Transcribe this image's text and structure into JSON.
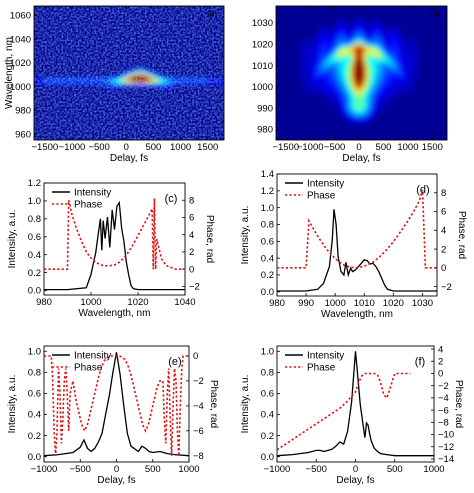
{
  "colors": {
    "intensity": "#000000",
    "phase": "#dd1111",
    "axis": "#000000"
  },
  "chart_data": [
    {
      "id": "a",
      "type": "heatmap",
      "panel_label": "(a)",
      "xlabel": "Delay, fs",
      "ylabel": "Wavelength, nm",
      "xlim": [
        -1700,
        1800
      ],
      "ylim": [
        955,
        1068
      ],
      "xticks": [
        -1500,
        -1000,
        -500,
        0,
        500,
        1000,
        1500
      ],
      "yticks": [
        960,
        980,
        1000,
        1020,
        1040,
        1060
      ],
      "colormap": "jet",
      "features": {
        "peak_delay_fs": 250,
        "peak_wavelength_nm": 1006,
        "band_wavelength_nm": 1005
      }
    },
    {
      "id": "b",
      "type": "heatmap",
      "panel_label": "(b)",
      "xlabel": "Delay, fs",
      "ylabel": "",
      "xlim": [
        -1700,
        1800
      ],
      "ylim": [
        975,
        1038
      ],
      "xticks": [
        -1500,
        -1000,
        -500,
        0,
        500,
        1000,
        1500
      ],
      "yticks": [
        980,
        990,
        1000,
        1010,
        1020,
        1030
      ],
      "colormap": "jet",
      "features": {
        "peak_delay_fs": 0,
        "peak_wavelength_nm": 1008
      }
    },
    {
      "id": "c",
      "type": "line",
      "panel_label": "(c)",
      "xlabel": "Wavelength, nm",
      "ylabel": "Intensity, a.u.",
      "y2label": "Phase, rad",
      "xlim": [
        980,
        1040
      ],
      "ylim": [
        -0.05,
        1.2
      ],
      "y2lim": [
        -3,
        10
      ],
      "xticks": [
        980,
        1000,
        1020,
        1040
      ],
      "yticks": [
        0.0,
        0.2,
        0.4,
        0.6,
        0.8,
        1.0,
        1.2
      ],
      "y2ticks": [
        -2,
        0,
        2,
        4,
        6,
        8
      ],
      "legend": [
        "Intensity",
        "Phase"
      ],
      "legend_position": "top-left",
      "series": [
        {
          "name": "Intensity",
          "axis": "left",
          "style": "solid",
          "x": [
            980,
            990,
            998,
            1000,
            1001,
            1002,
            1003,
            1004,
            1004.6,
            1005.2,
            1006,
            1007,
            1008,
            1009,
            1010,
            1011,
            1012,
            1012.5,
            1013,
            1014,
            1015,
            1016,
            1017,
            1018,
            1020,
            1025,
            1040
          ],
          "y": [
            0.01,
            0.01,
            0.03,
            0.18,
            0.3,
            0.42,
            0.62,
            0.8,
            0.45,
            0.78,
            0.58,
            0.82,
            0.48,
            0.9,
            0.68,
            0.94,
            0.98,
            0.85,
            0.7,
            0.55,
            0.32,
            0.18,
            0.06,
            0.02,
            0.01,
            0.01,
            0.01
          ]
        },
        {
          "name": "Phase",
          "axis": "right",
          "style": "dotted",
          "x": [
            980,
            990,
            990.5,
            991,
            992,
            994,
            996,
            998,
            1000,
            1002,
            1004,
            1006,
            1008,
            1010,
            1012,
            1014,
            1016,
            1018,
            1020,
            1022,
            1024,
            1026,
            1026.5,
            1027,
            1027.5,
            1028,
            1030,
            1032,
            1034,
            1036,
            1040
          ],
          "y": [
            0,
            0,
            8,
            7.5,
            6.2,
            4.6,
            3.2,
            2.0,
            1.3,
            0.8,
            0.5,
            0.4,
            0.4,
            0.5,
            0.8,
            1.3,
            2.0,
            2.9,
            3.9,
            4.9,
            5.9,
            7.0,
            0,
            8.2,
            0,
            3.5,
            1.2,
            0.4,
            0.2,
            0,
            0
          ]
        }
      ]
    },
    {
      "id": "d",
      "type": "line",
      "panel_label": "(d)",
      "xlabel": "Wavelength, nm",
      "ylabel": "Intensity, a.u.",
      "y2label": "Phase, rad",
      "xlim": [
        980,
        1035
      ],
      "ylim": [
        -0.05,
        1.4
      ],
      "y2lim": [
        -3,
        10
      ],
      "xticks": [
        980,
        990,
        1000,
        1010,
        1020,
        1030
      ],
      "yticks": [
        0.0,
        0.2,
        0.4,
        0.6,
        0.8,
        1.0,
        1.2,
        1.4
      ],
      "y2ticks": [
        -2,
        0,
        2,
        4,
        6,
        8
      ],
      "legend": [
        "Intensity",
        "Phase"
      ],
      "legend_position": "top-left",
      "series": [
        {
          "name": "Intensity",
          "axis": "left",
          "style": "solid",
          "x": [
            980,
            990,
            994,
            996,
            998,
            999,
            999.6,
            1000.3,
            1001,
            1002,
            1003,
            1003.7,
            1004.5,
            1005.3,
            1006,
            1007,
            1008,
            1009,
            1010,
            1011,
            1012,
            1013,
            1014,
            1015,
            1016,
            1017,
            1018,
            1020,
            1035
          ],
          "y": [
            0.01,
            0.01,
            0.03,
            0.1,
            0.3,
            0.62,
            0.98,
            0.8,
            0.42,
            0.24,
            0.2,
            0.35,
            0.2,
            0.28,
            0.24,
            0.26,
            0.3,
            0.34,
            0.38,
            0.37,
            0.33,
            0.34,
            0.3,
            0.24,
            0.16,
            0.08,
            0.03,
            0.01,
            0.01
          ]
        },
        {
          "name": "Phase",
          "axis": "right",
          "style": "dotted",
          "x": [
            980,
            990,
            991,
            993,
            995,
            997,
            999,
            1001,
            1003,
            1005,
            1007,
            1009,
            1011,
            1013,
            1015,
            1017,
            1019,
            1021,
            1023,
            1025,
            1027,
            1029,
            1030,
            1031,
            1035
          ],
          "y": [
            0,
            0,
            5.0,
            3.9,
            2.9,
            2.0,
            1.3,
            0.7,
            0.3,
            0.1,
            0,
            0.1,
            0.3,
            0.6,
            1.1,
            1.7,
            2.4,
            3.2,
            4.1,
            5.0,
            6.0,
            7.2,
            8.3,
            0,
            0
          ]
        }
      ]
    },
    {
      "id": "e",
      "type": "line",
      "panel_label": "(e)",
      "xlabel": "Delay, fs",
      "ylabel": "Intensity, a.u.",
      "y2label": "Phase, rad",
      "xlim": [
        -1000,
        1000
      ],
      "ylim": [
        -0.05,
        1.05
      ],
      "y2lim": [
        -8.5,
        0.8
      ],
      "xticks": [
        -1000,
        -500,
        0,
        500,
        1000
      ],
      "yticks": [
        0.0,
        0.2,
        0.4,
        0.6,
        0.8,
        1.0
      ],
      "y2ticks": [
        -8,
        -6,
        -4,
        -2,
        0
      ],
      "legend": [
        "Intensity",
        "Phase"
      ],
      "legend_position": "top-left",
      "series": [
        {
          "name": "Intensity",
          "axis": "left",
          "style": "solid",
          "x": [
            -1000,
            -800,
            -600,
            -500,
            -450,
            -400,
            -350,
            -300,
            -250,
            -200,
            -150,
            -100,
            -50,
            0,
            50,
            100,
            150,
            200,
            300,
            350,
            400,
            450,
            500,
            600,
            700,
            800,
            1000
          ],
          "y": [
            0.01,
            0.02,
            0.04,
            0.09,
            0.16,
            0.08,
            0.05,
            0.08,
            0.14,
            0.22,
            0.4,
            0.58,
            0.8,
            0.99,
            0.78,
            0.48,
            0.22,
            0.1,
            0.05,
            0.1,
            0.08,
            0.05,
            0.04,
            0.05,
            0.03,
            0.02,
            0.01
          ]
        },
        {
          "name": "Phase",
          "axis": "right",
          "style": "dotted",
          "x": [
            -1000,
            -900,
            -880,
            -860,
            -840,
            -820,
            -800,
            -780,
            -760,
            -740,
            -720,
            -700,
            -680,
            -660,
            -640,
            -600,
            -560,
            -520,
            -480,
            -440,
            -400,
            -360,
            -320,
            -280,
            -240,
            -200,
            -160,
            -120,
            -80,
            -40,
            0,
            40,
            80,
            120,
            160,
            200,
            240,
            280,
            320,
            360,
            400,
            440,
            480,
            520,
            560,
            600,
            640,
            660,
            680,
            700,
            720,
            740,
            760,
            780,
            800,
            820,
            840,
            860,
            880,
            900,
            920,
            1000
          ],
          "y": [
            0,
            0,
            -2,
            -6,
            -8,
            -6,
            -1,
            -3,
            -7,
            -5,
            -2,
            -1,
            -3,
            -6,
            -3,
            -2,
            -3.5,
            -4.5,
            -5.5,
            -6,
            -5.5,
            -4.5,
            -3.5,
            -2.5,
            -1.5,
            -0.8,
            -0.3,
            -0.1,
            0,
            0,
            0,
            0,
            -0.1,
            -0.3,
            -0.8,
            -1.5,
            -2.5,
            -3.5,
            -4.5,
            -5.5,
            -6,
            -5.5,
            -4.5,
            -3.5,
            -2.5,
            -2,
            -2,
            -5,
            -7,
            -3,
            -1,
            -5,
            -8,
            -4,
            -1,
            -2,
            -6,
            -8,
            -4,
            -1,
            0,
            0
          ]
        }
      ]
    },
    {
      "id": "f",
      "type": "line",
      "panel_label": "(f)",
      "xlabel": "Delay, fs",
      "ylabel": "Intensity, a.u.",
      "y2label": "Phase, rad",
      "xlim": [
        -1000,
        1000
      ],
      "ylim": [
        -0.05,
        1.05
      ],
      "y2lim": [
        -14.5,
        4.5
      ],
      "xticks": [
        -1000,
        -500,
        0,
        500,
        1000
      ],
      "yticks": [
        0.0,
        0.2,
        0.4,
        0.6,
        0.8,
        1.0
      ],
      "y2ticks": [
        -14,
        -12,
        -10,
        -8,
        -6,
        -4,
        -2,
        0,
        2,
        4
      ],
      "legend": [
        "Intensity",
        "Phase"
      ],
      "legend_position": "top-left",
      "series": [
        {
          "name": "Intensity",
          "axis": "left",
          "style": "solid",
          "x": [
            -1000,
            -800,
            -600,
            -500,
            -450,
            -400,
            -300,
            -250,
            -200,
            -150,
            -100,
            -50,
            0,
            30,
            60,
            100,
            120,
            140,
            160,
            180,
            200,
            240,
            280,
            320,
            400,
            500,
            700,
            1000
          ],
          "y": [
            0.01,
            0.02,
            0.04,
            0.06,
            0.06,
            0.05,
            0.07,
            0.1,
            0.14,
            0.12,
            0.24,
            0.52,
            1.0,
            0.75,
            0.5,
            0.28,
            0.18,
            0.32,
            0.3,
            0.22,
            0.15,
            0.08,
            0.05,
            0.03,
            0.02,
            0.01,
            0.01,
            0.01
          ]
        },
        {
          "name": "Phase",
          "axis": "right",
          "style": "dotted",
          "x": [
            -1000,
            -800,
            -600,
            -400,
            -200,
            -100,
            0,
            40,
            80,
            120,
            160,
            200,
            240,
            280,
            320,
            360,
            400,
            440,
            480,
            500,
            560,
            600,
            640,
            700
          ],
          "y": [
            -12.5,
            -10.8,
            -9.1,
            -7.4,
            -5.7,
            -4.5,
            -3.0,
            -1.5,
            -0.4,
            0,
            0,
            0,
            0,
            -0.2,
            -1.5,
            -3.5,
            -4.0,
            -2.5,
            -0.8,
            0,
            0,
            0,
            0,
            0
          ]
        }
      ]
    }
  ]
}
